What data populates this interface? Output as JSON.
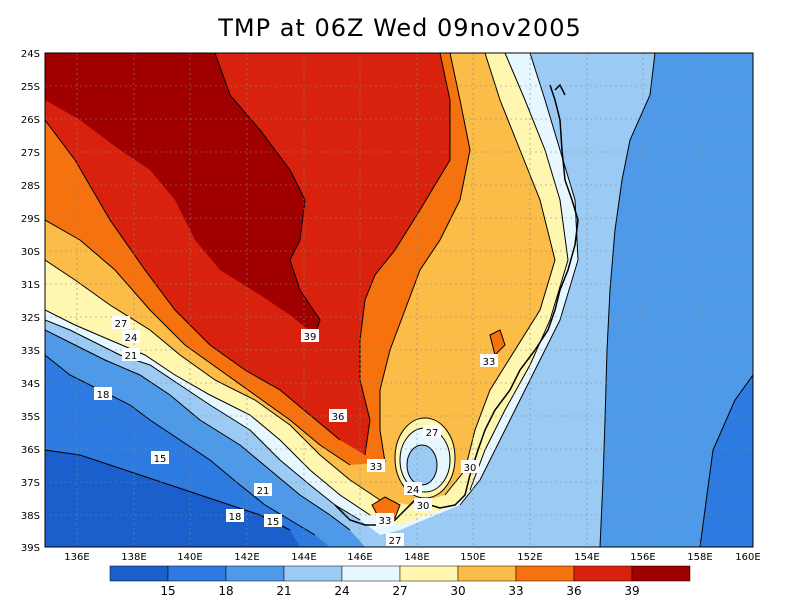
{
  "title": "TMP at 06Z Wed 09nov2005",
  "lat_labels": [
    "24S",
    "25S",
    "26S",
    "27S",
    "28S",
    "29S",
    "30S",
    "31S",
    "32S",
    "33S",
    "34S",
    "35S",
    "36S",
    "37S",
    "38S",
    "39S"
  ],
  "lon_labels": [
    "136E",
    "138E",
    "140E",
    "142E",
    "144E",
    "146E",
    "148E",
    "150E",
    "152E",
    "154E",
    "156E",
    "158E",
    "160E"
  ],
  "colorbar": {
    "colors": [
      "#1b5fcc",
      "#2d7ae0",
      "#4f9ae8",
      "#9bcbf5",
      "#e6f7ff",
      "#fff7b0",
      "#fbbd47",
      "#f5720f",
      "#d8220d",
      "#a00000"
    ],
    "labels": [
      "15",
      "18",
      "21",
      "24",
      "27",
      "30",
      "33",
      "36",
      "39"
    ]
  },
  "contour_labels": [
    {
      "text": "39"
    },
    {
      "text": "36"
    },
    {
      "text": "33"
    },
    {
      "text": "33"
    },
    {
      "text": "33"
    },
    {
      "text": "30"
    },
    {
      "text": "30"
    },
    {
      "text": "27"
    },
    {
      "text": "27"
    },
    {
      "text": "27"
    },
    {
      "text": "24"
    },
    {
      "text": "24"
    },
    {
      "text": "21"
    },
    {
      "text": "21"
    },
    {
      "text": "18"
    },
    {
      "text": "18"
    },
    {
      "text": "15"
    },
    {
      "text": "15"
    }
  ]
}
